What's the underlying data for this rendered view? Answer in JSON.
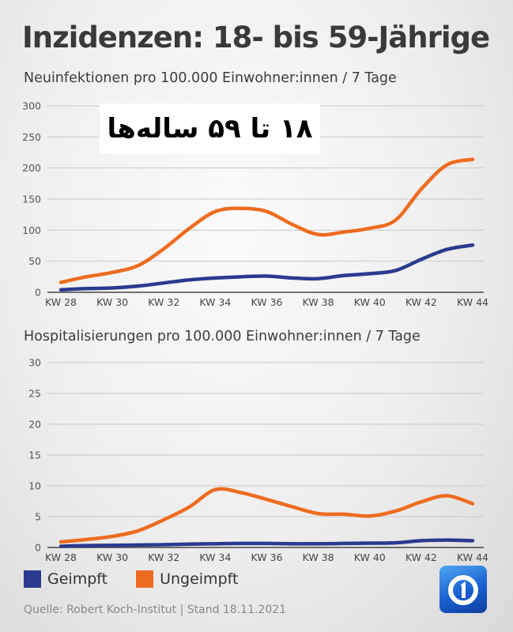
{
  "title": "Inzidenzen: 18- bis 59-Jährige",
  "overlay_text": "۱۸ تا ۵۹ ساله‌ها",
  "legend": [
    {
      "label": "Geimpft",
      "color": "#2b3a8f"
    },
    {
      "label": "Ungeimpft",
      "color": "#ee6c1f"
    }
  ],
  "source": "Quelle: Robert Koch-Institut | Stand 18.11.2021",
  "logo_icon": "ard-one-logo-icon",
  "chart_data": [
    {
      "type": "line",
      "title": "Neuinfektionen pro 100.000 Einwohner:innen / 7 Tage",
      "x": [
        "KW 28",
        "KW 29",
        "KW 30",
        "KW 31",
        "KW 32",
        "KW 33",
        "KW 34",
        "KW 35",
        "KW 36",
        "KW 37",
        "KW 38",
        "KW 39",
        "KW 40",
        "KW 41",
        "KW 42",
        "KW 43",
        "KW 44"
      ],
      "x_tick_labels": [
        "KW 28",
        "KW 30",
        "KW 32",
        "KW 34",
        "KW 36",
        "KW 38",
        "KW 40",
        "KW 42",
        "KW 44"
      ],
      "y_ticks": [
        0,
        50,
        100,
        150,
        200,
        250,
        300
      ],
      "ylim": [
        0,
        300
      ],
      "grid": true,
      "series": [
        {
          "name": "Geimpft",
          "color": "#2b3a8f",
          "values": [
            4,
            6,
            7,
            10,
            15,
            20,
            23,
            25,
            26,
            23,
            22,
            27,
            30,
            35,
            53,
            69,
            76
          ]
        },
        {
          "name": "Ungeimpft",
          "color": "#ee6c1f",
          "values": [
            16,
            25,
            32,
            43,
            70,
            103,
            130,
            135,
            130,
            109,
            93,
            97,
            103,
            116,
            166,
            205,
            214
          ]
        }
      ]
    },
    {
      "type": "line",
      "title": "Hospitalisierungen pro 100.000 Einwohner:innen / 7 Tage",
      "x": [
        "KW 28",
        "KW 29",
        "KW 30",
        "KW 31",
        "KW 32",
        "KW 33",
        "KW 34",
        "KW 35",
        "KW 36",
        "KW 37",
        "KW 38",
        "KW 39",
        "KW 40",
        "KW 41",
        "KW 42",
        "KW 43",
        "KW 44"
      ],
      "x_tick_labels": [
        "KW 28",
        "KW 30",
        "KW 32",
        "KW 34",
        "KW 36",
        "KW 38",
        "KW 40",
        "KW 42",
        "KW 44"
      ],
      "y_ticks": [
        0,
        5,
        10,
        15,
        20,
        25,
        30
      ],
      "ylim": [
        0,
        30
      ],
      "grid": true,
      "series": [
        {
          "name": "Geimpft",
          "color": "#2b3a8f",
          "values": [
            0.2,
            0.3,
            0.35,
            0.4,
            0.45,
            0.55,
            0.6,
            0.65,
            0.65,
            0.6,
            0.6,
            0.65,
            0.7,
            0.75,
            1.1,
            1.2,
            1.1
          ]
        },
        {
          "name": "Ungeimpft",
          "color": "#ee6c1f",
          "values": [
            0.9,
            1.3,
            1.8,
            2.7,
            4.5,
            6.6,
            9.4,
            8.9,
            7.8,
            6.6,
            5.5,
            5.4,
            5.1,
            5.9,
            7.4,
            8.4,
            7.1
          ]
        }
      ]
    }
  ]
}
